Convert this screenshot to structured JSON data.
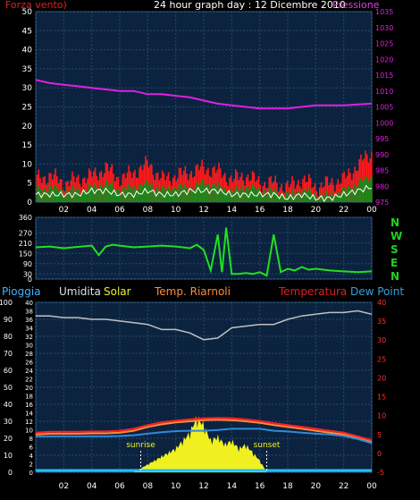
{
  "header": {
    "title": "24 hour graph day : 12 Dicembre 2010",
    "wind_label": "Forza vento)",
    "pressure_label": "Pressione"
  },
  "legend2": {
    "pioggia": "Pioggia",
    "umidita": "Umidita",
    "solar": "Solar",
    "temp_riarnoli": "Temp. Riarnoli",
    "temperatura": "Temperatura",
    "dew_point": "Dew Point"
  },
  "directions": [
    "N",
    "W",
    "S",
    "E",
    "N"
  ],
  "annotations": {
    "sunrise": "sunrise",
    "sunset": "sunset"
  },
  "colors": {
    "background": "#000000",
    "plot_bg": "#0c2340",
    "grid": "#25496e",
    "wind_red": "#ff1a1a",
    "wind_green": "#1a8a1a",
    "wind_white": "#ffffff",
    "pressure": "#e020e0",
    "direction": "#20e020",
    "humidity": "#c0c0c0",
    "solar": "#f0f020",
    "temperature": "#ff2020",
    "temp_riarnoli": "#ff8a3a",
    "dew_point": "#2f8ad8",
    "rain": "#20c0ff",
    "left_axis": "#ffffff",
    "pressure_axis": "#e020e0",
    "temp_axis": "#ff3030"
  },
  "chart_data": [
    {
      "type": "area",
      "title": "24 hour graph day : 12 Dicembre 2010",
      "x_ticks": [
        "02",
        "04",
        "06",
        "08",
        "10",
        "12",
        "14",
        "16",
        "18",
        "20",
        "22",
        "00"
      ],
      "x_range": [
        0,
        24
      ],
      "y_left": {
        "label": "Forza vento)",
        "range": [
          0,
          50
        ],
        "ticks": [
          0,
          5,
          10,
          15,
          20,
          25,
          30,
          35,
          40,
          45,
          50
        ]
      },
      "y_right": {
        "label": "Pressione",
        "range": [
          975,
          1035
        ],
        "ticks": [
          975,
          980,
          985,
          990,
          995,
          1000,
          1005,
          1010,
          1015,
          1020,
          1025,
          1030,
          1035
        ]
      },
      "series": [
        {
          "name": "Pressione",
          "axis": "right",
          "x": [
            0,
            1,
            2,
            3,
            4,
            5,
            6,
            7,
            8,
            9,
            10,
            11,
            12,
            13,
            14,
            15,
            16,
            17,
            18,
            19,
            20,
            21,
            22,
            23,
            24
          ],
          "y": [
            1013.5,
            1012.5,
            1012.0,
            1011.5,
            1011.0,
            1010.5,
            1010.0,
            1010.0,
            1009.0,
            1009.0,
            1008.5,
            1008.0,
            1007.0,
            1006.0,
            1005.5,
            1005.0,
            1004.5,
            1004.5,
            1004.5,
            1005.0,
            1005.5,
            1005.5,
            1005.5,
            1005.8,
            1006.0
          ]
        },
        {
          "name": "Raffica",
          "axis": "left",
          "x": [
            0,
            1,
            2,
            3,
            4,
            5,
            6,
            7,
            8,
            9,
            10,
            11,
            12,
            13,
            14,
            15,
            16,
            17,
            18,
            19,
            20,
            21,
            22,
            23,
            24
          ],
          "y": [
            6,
            7,
            5,
            6,
            7,
            9,
            6,
            8,
            10,
            6,
            7,
            8,
            9,
            8,
            6,
            7,
            5,
            5,
            4,
            6,
            4,
            5,
            6,
            10,
            13
          ]
        },
        {
          "name": "Media",
          "axis": "left",
          "x": [
            0,
            1,
            2,
            3,
            4,
            5,
            6,
            7,
            8,
            9,
            10,
            11,
            12,
            13,
            14,
            15,
            16,
            17,
            18,
            19,
            20,
            21,
            22,
            23,
            24
          ],
          "y": [
            3,
            4,
            3,
            3,
            4,
            5,
            3,
            4,
            5,
            3,
            4,
            4,
            5,
            4,
            3,
            4,
            3,
            3,
            2,
            3,
            2,
            2,
            3,
            5,
            7
          ]
        },
        {
          "name": "Vento",
          "axis": "left",
          "x": [
            0,
            1,
            2,
            3,
            4,
            5,
            6,
            7,
            8,
            9,
            10,
            11,
            12,
            13,
            14,
            15,
            16,
            17,
            18,
            19,
            20,
            21,
            22,
            23,
            24
          ],
          "y": [
            2,
            2,
            2,
            2,
            3,
            3,
            2,
            2,
            3,
            2,
            2,
            3,
            3,
            3,
            2,
            2,
            2,
            2,
            1,
            2,
            1,
            1,
            2,
            3,
            4
          ]
        }
      ]
    },
    {
      "type": "line",
      "x_ticks": [
        "02",
        "04",
        "06",
        "08",
        "10",
        "12",
        "14",
        "16",
        "18",
        "20",
        "22",
        "00"
      ],
      "x_range": [
        0,
        24
      ],
      "y_left": {
        "range": [
          0,
          360
        ],
        "ticks": [
          0,
          30,
          90,
          150,
          210,
          270,
          360
        ]
      },
      "series": [
        {
          "name": "Direzione",
          "x": [
            0,
            1,
            2,
            3,
            4,
            4.5,
            5,
            5.5,
            6,
            7,
            8,
            9,
            10,
            10.5,
            11,
            11.5,
            12,
            12.5,
            13,
            13.3,
            13.6,
            14,
            14.5,
            15,
            15.5,
            16,
            16.5,
            17,
            17.5,
            18,
            18.5,
            19,
            19.5,
            20,
            21,
            22,
            23,
            24
          ],
          "y": [
            185,
            190,
            180,
            188,
            195,
            140,
            190,
            200,
            195,
            185,
            190,
            195,
            190,
            185,
            180,
            200,
            170,
            50,
            260,
            40,
            300,
            30,
            30,
            35,
            30,
            40,
            20,
            260,
            40,
            60,
            50,
            70,
            55,
            60,
            50,
            45,
            40,
            45
          ]
        }
      ]
    },
    {
      "type": "line",
      "x_ticks": [
        "02",
        "04",
        "06",
        "08",
        "10",
        "12",
        "14",
        "16",
        "18",
        "20",
        "22",
        "00"
      ],
      "x_range": [
        0,
        24
      ],
      "y_left": {
        "label": "Pioggia",
        "range": [
          0,
          100
        ],
        "ticks": [
          0,
          10,
          20,
          30,
          40,
          50,
          60,
          70,
          80,
          90,
          100
        ]
      },
      "y_left_inner": {
        "range": [
          0,
          40
        ],
        "ticks": [
          0,
          2,
          4,
          6,
          8,
          10,
          12,
          14,
          16,
          18,
          20,
          22,
          24,
          26,
          28,
          30,
          32,
          34,
          36,
          38,
          40
        ]
      },
      "y_right": {
        "label": "Temperatura",
        "range": [
          -5,
          40
        ],
        "ticks": [
          -5,
          0,
          5,
          10,
          15,
          20,
          25,
          30,
          35,
          40
        ]
      },
      "series": [
        {
          "name": "Umidita",
          "axis": "left",
          "x": [
            0,
            1,
            2,
            3,
            4,
            5,
            6,
            7,
            8,
            9,
            10,
            11,
            12,
            13,
            14,
            15,
            16,
            17,
            18,
            19,
            20,
            21,
            22,
            23,
            24
          ],
          "y": [
            92,
            92,
            91,
            91,
            90,
            90,
            89,
            88,
            87,
            84,
            84,
            82,
            78,
            79,
            85,
            86,
            87,
            87,
            90,
            92,
            93,
            94,
            94,
            95,
            93
          ]
        },
        {
          "name": "Temperatura",
          "axis": "right",
          "x": [
            0,
            1,
            2,
            3,
            4,
            5,
            6,
            7,
            8,
            9,
            10,
            11,
            12,
            13,
            14,
            15,
            16,
            17,
            18,
            19,
            20,
            21,
            22,
            23,
            24
          ],
          "y": [
            5.5,
            5.7,
            5.7,
            5.7,
            5.8,
            5.8,
            6.0,
            6.5,
            7.5,
            8.2,
            8.7,
            9.0,
            9.3,
            9.4,
            9.3,
            9.0,
            8.6,
            8.0,
            7.5,
            7.0,
            6.5,
            6.0,
            5.5,
            4.5,
            3.5
          ]
        },
        {
          "name": "Temp. Riarnoli",
          "axis": "right",
          "x": [
            0,
            1,
            2,
            3,
            4,
            5,
            6,
            7,
            8,
            9,
            10,
            11,
            12,
            13,
            14,
            15,
            16,
            17,
            18,
            19,
            20,
            21,
            22,
            23,
            24
          ],
          "y": [
            5.0,
            5.2,
            5.2,
            5.2,
            5.3,
            5.3,
            5.5,
            6.0,
            7.0,
            7.7,
            8.2,
            8.5,
            8.8,
            8.9,
            8.8,
            8.5,
            8.1,
            7.5,
            7.0,
            6.5,
            6.0,
            5.5,
            5.0,
            4.0,
            3.0
          ]
        },
        {
          "name": "Dew Point",
          "axis": "right",
          "x": [
            0,
            1,
            2,
            3,
            4,
            5,
            6,
            7,
            8,
            9,
            10,
            11,
            12,
            13,
            14,
            15,
            16,
            17,
            18,
            19,
            20,
            21,
            22,
            23,
            24
          ],
          "y": [
            4.5,
            4.5,
            4.5,
            4.5,
            4.5,
            4.5,
            4.6,
            4.8,
            5.2,
            5.6,
            5.9,
            6.0,
            6.0,
            6.2,
            6.5,
            6.5,
            6.5,
            6.0,
            5.8,
            5.5,
            5.2,
            5.0,
            4.6,
            3.8,
            2.7
          ]
        },
        {
          "name": "Solar",
          "axis": "left",
          "x": [
            7,
            7.5,
            8,
            8.5,
            9,
            9.5,
            10,
            10.5,
            11,
            11.5,
            12,
            12.5,
            13,
            13.5,
            14,
            14.5,
            15,
            15.5,
            16,
            16.5
          ],
          "y": [
            0,
            1,
            2,
            3,
            4,
            5,
            6,
            8,
            10,
            14,
            12,
            8,
            9,
            7,
            8,
            6,
            7,
            5,
            3,
            0
          ]
        },
        {
          "name": "Pioggia",
          "axis": "left",
          "x": [
            0,
            24
          ],
          "y": [
            0.5,
            0.5
          ]
        }
      ],
      "annotations": [
        {
          "text": "sunrise",
          "x": 7.5
        },
        {
          "text": "sunset",
          "x": 16.5
        }
      ]
    }
  ]
}
